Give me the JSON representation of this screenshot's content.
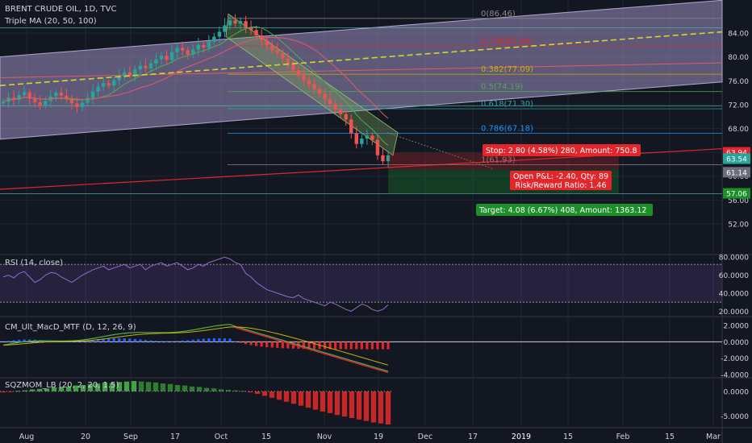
{
  "header": {
    "symbol": "BRENT CRUDE OIL, 1D, TVC",
    "indicator": "Triple MA (20, 50, 100)"
  },
  "colors": {
    "background": "#131722",
    "grid": "#1f2433",
    "axis_text": "#d1d4dc",
    "candle_up": "#26a69a",
    "candle_down": "#ef5350",
    "channel_fill": "#9c8fc0",
    "fib_text": "#c8b400",
    "stop_bg": "#e3262c",
    "target_bg": "#1b8f2a",
    "ma_yellow": "#d6d62a"
  },
  "chart_data": [
    {
      "name": "Price",
      "type": "candlestick",
      "ylim": [
        47,
        89
      ],
      "y_ticks": [
        "84.00",
        "80.00",
        "76.00",
        "72.00",
        "68.00",
        "64.00",
        "60.00",
        "56.00",
        "52.00"
      ],
      "x_ticks": [
        "Aug",
        "20",
        "Sep",
        "17",
        "Oct",
        "15",
        "Nov",
        "19",
        "Dec",
        "17",
        "2019",
        "15",
        "Feb",
        "15",
        "Mar"
      ],
      "closes": [
        72.5,
        73.2,
        72.8,
        73.6,
        74.1,
        73.0,
        72.4,
        71.9,
        72.6,
        73.4,
        74.0,
        73.5,
        72.9,
        72.2,
        71.6,
        72.3,
        73.1,
        74.2,
        75.0,
        75.6,
        75.2,
        76.1,
        76.8,
        77.4,
        77.0,
        77.9,
        78.5,
        78.1,
        78.9,
        79.6,
        80.2,
        79.5,
        80.8,
        81.5,
        81.1,
        80.4,
        81.2,
        82.0,
        81.6,
        82.6,
        83.4,
        84.2,
        85.3,
        86.1,
        85.6,
        86.0,
        84.9,
        84.5,
        83.6,
        82.8,
        81.9,
        81.2,
        80.6,
        79.7,
        78.9,
        77.8,
        76.9,
        76.1,
        75.4,
        74.6,
        73.8,
        72.9,
        72.1,
        71.2,
        70.4,
        69.5,
        67.2,
        65.4,
        66.3,
        66.8,
        66.1,
        63.5,
        62.5,
        63.5
      ],
      "price_labels": [
        {
          "text": "63.94",
          "value": 63.94,
          "color": "#e3262c"
        },
        {
          "text": "63.54",
          "value": 63.54,
          "color": "#26a69a"
        },
        {
          "text": "61.14",
          "value": 61.14,
          "color": "#6b6f7a"
        },
        {
          "text": "57.06",
          "value": 57.06,
          "color": "#1b8f2a"
        }
      ],
      "fib_levels": [
        {
          "label": "0(86.46)",
          "value": 86.46,
          "color": "#8a8a8a"
        },
        {
          "label": "0.236(81.84)",
          "value": 81.84,
          "color": "#e3262c"
        },
        {
          "label": "0.382(77.09)",
          "value": 77.09,
          "color": "#c8b400"
        },
        {
          "label": "0.5(74.19)",
          "value": 74.19,
          "color": "#4caf50"
        },
        {
          "label": "0.618(71.30)",
          "value": 71.3,
          "color": "#26a69a"
        },
        {
          "label": "0.786(67.18)",
          "value": 67.18,
          "color": "#2196f3"
        },
        {
          "label": "1(61.93)",
          "value": 61.93,
          "color": "#8a8a8a"
        }
      ],
      "position": {
        "stop_text": "Stop: 2.80 (4.58%) 280, Amount: 750.8",
        "pnl_text": "Open P&L: -2.40, Qty: 89",
        "rr_text": "Risk/Reward Ratio: 1.46",
        "target_text": "Target: 4.08 (6.67%) 408, Amount: 1363.12",
        "entry": 61.14,
        "stop": 63.94,
        "target": 57.06
      }
    },
    {
      "name": "RSI (14, close)",
      "type": "line",
      "ylim": [
        15,
        82
      ],
      "y_ticks": [
        "80.0000",
        "60.0000",
        "40.0000",
        "20.0000"
      ],
      "values": [
        58,
        60,
        57,
        62,
        64,
        58,
        52,
        55,
        60,
        63,
        62,
        58,
        55,
        52,
        56,
        60,
        63,
        66,
        68,
        70,
        66,
        68,
        70,
        72,
        68,
        70,
        72,
        66,
        70,
        72,
        74,
        70,
        72,
        74,
        70,
        66,
        68,
        72,
        70,
        74,
        76,
        78,
        80,
        78,
        74,
        72,
        62,
        58,
        52,
        48,
        44,
        42,
        40,
        38,
        36,
        35,
        38,
        34,
        32,
        30,
        28,
        26,
        30,
        28,
        25,
        22,
        20,
        24,
        28,
        26,
        22,
        20,
        22,
        27
      ]
    },
    {
      "name": "CM_Ult_MacD_MTF (D, 12, 26, 9)",
      "type": "line",
      "ylim": [
        -4.3,
        3.0
      ],
      "y_ticks": [
        "2.0000",
        "0.0000",
        "-2.0000",
        "-4.0000"
      ]
    },
    {
      "name": "SQZMOM_LB (20, 2, 20, 1.5)",
      "type": "bar",
      "ylim": [
        -7.2,
        2.6
      ],
      "y_ticks": [
        "0.0000",
        "-5.0000"
      ],
      "values": [
        -0.2,
        -0.1,
        0.1,
        0.2,
        0.4,
        0.5,
        0.6,
        0.8,
        0.9,
        1.0,
        1.2,
        1.3,
        1.5,
        1.6,
        1.8,
        1.7,
        1.9,
        2.0,
        2.1,
        2.0,
        1.9,
        1.8,
        1.6,
        1.5,
        1.3,
        1.2,
        1.0,
        0.9,
        0.7,
        0.6,
        0.4,
        0.3,
        0.2,
        0.1,
        -0.2,
        -0.5,
        -0.9,
        -1.3,
        -1.7,
        -2.1,
        -2.5,
        -2.9,
        -3.3,
        -3.7,
        -4.1,
        -4.4,
        -4.8,
        -5.1,
        -5.4,
        -5.7,
        -6.0,
        -6.3,
        -6.5,
        -6.7
      ]
    }
  ]
}
